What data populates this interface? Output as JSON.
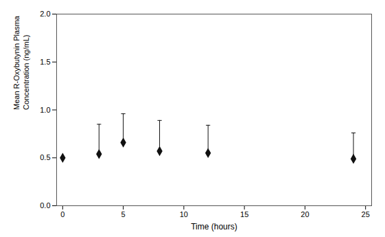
{
  "chart_data": {
    "type": "scatter",
    "x": [
      0,
      3,
      5,
      8,
      12,
      24
    ],
    "values": [
      0.5,
      0.54,
      0.66,
      0.57,
      0.55,
      0.49
    ],
    "yerr_upper": [
      0.0,
      0.31,
      0.3,
      0.32,
      0.29,
      0.27
    ],
    "yerr_lower": [
      0.0,
      0.0,
      0.0,
      0.0,
      0.0,
      0.0
    ],
    "xlabel": "Time (hours)",
    "ylabel": "Mean R-Oxybutynin Plasma\nConcentration (ng/mL)",
    "xlim": [
      -0.5,
      25.5
    ],
    "ylim": [
      0.0,
      2.0
    ],
    "xticks": [
      0,
      5,
      10,
      15,
      20,
      25
    ],
    "yticks": [
      {
        "value": 0,
        "label": "0.0"
      },
      0.5,
      {
        "value": 1,
        "label": "1.0"
      },
      1.5,
      {
        "value": 2,
        "label": "2.0"
      }
    ],
    "color": "#111111",
    "marker": "diamond",
    "grid": false
  }
}
